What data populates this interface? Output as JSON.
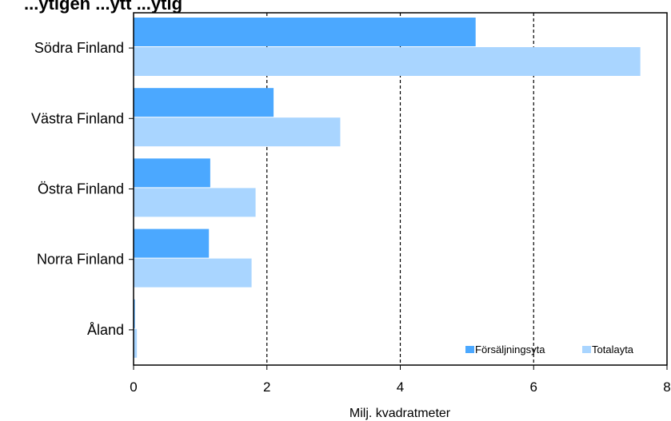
{
  "chart_data": {
    "type": "bar",
    "orientation": "horizontal",
    "title": "...ytigen   ...ytt   ...ytig",
    "categories": [
      "Södra Finland",
      "Västra Finland",
      "Östra Finland",
      "Norra Finland",
      "Åland"
    ],
    "series": [
      {
        "name": "Försäljningsyta",
        "color": "#4BA8FF",
        "values": [
          5.13,
          2.1,
          1.15,
          1.13,
          0.02
        ]
      },
      {
        "name": "Totalayta",
        "color": "#A9D5FF",
        "values": [
          7.6,
          3.1,
          1.83,
          1.77,
          0.05
        ]
      }
    ],
    "xlabel": "Milj. kvadratmeter",
    "xlim": [
      0,
      8
    ],
    "xticks": [
      "0",
      "2",
      "4",
      "6",
      "8"
    ],
    "grid": "vertical dashed",
    "legend_position": "bottom-right"
  }
}
